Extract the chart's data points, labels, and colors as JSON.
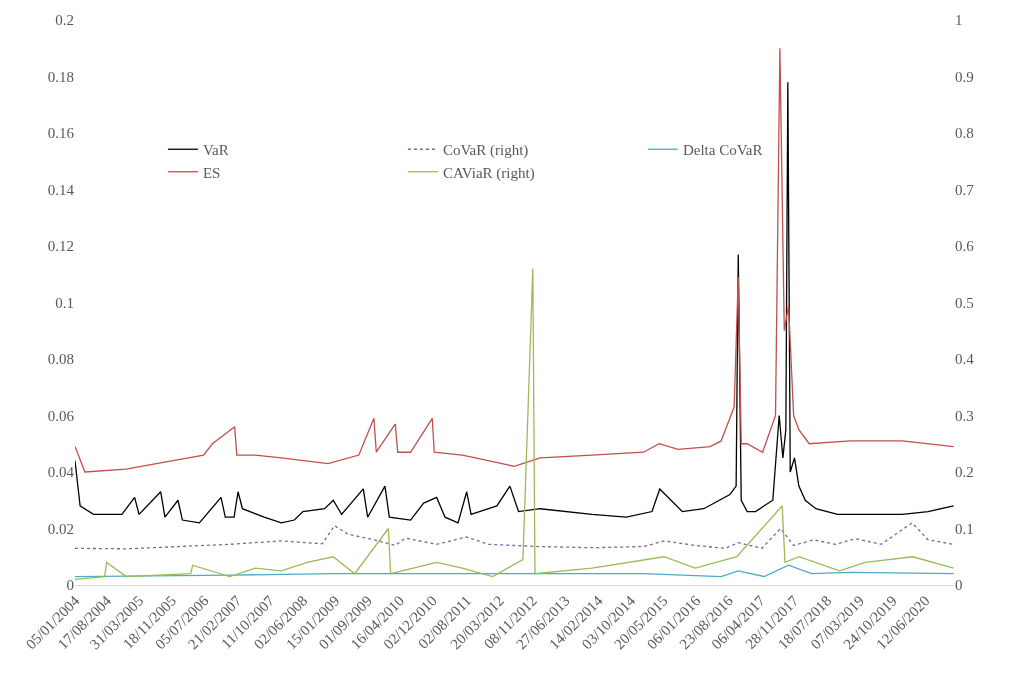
{
  "chart_data": {
    "type": "line",
    "xlim": [
      "2004-01-05",
      "2020-12-31"
    ],
    "xticks": [
      {
        "value": "2004-01-05",
        "label": "05/01/2004"
      },
      {
        "value": "2004-08-17",
        "label": "17/08/2004"
      },
      {
        "value": "2005-03-31",
        "label": "31/03/2005"
      },
      {
        "value": "2005-11-18",
        "label": "18/11/2005"
      },
      {
        "value": "2006-07-05",
        "label": "05/07/2006"
      },
      {
        "value": "2007-02-21",
        "label": "21/02/2007"
      },
      {
        "value": "2007-10-11",
        "label": "11/10/2007"
      },
      {
        "value": "2008-06-02",
        "label": "02/06/2008"
      },
      {
        "value": "2009-01-15",
        "label": "15/01/2009"
      },
      {
        "value": "2009-09-01",
        "label": "01/09/2009"
      },
      {
        "value": "2010-04-16",
        "label": "16/04/2010"
      },
      {
        "value": "2010-12-02",
        "label": "02/12/2010"
      },
      {
        "value": "2011-08-02",
        "label": "02/08/2011"
      },
      {
        "value": "2012-03-20",
        "label": "20/03/2012"
      },
      {
        "value": "2012-11-08",
        "label": "08/11/2012"
      },
      {
        "value": "2013-06-27",
        "label": "27/06/2013"
      },
      {
        "value": "2014-02-14",
        "label": "14/02/2014"
      },
      {
        "value": "2014-10-03",
        "label": "03/10/2014"
      },
      {
        "value": "2015-05-20",
        "label": "20/05/2015"
      },
      {
        "value": "2016-01-06",
        "label": "06/01/2016"
      },
      {
        "value": "2016-08-23",
        "label": "23/08/2016"
      },
      {
        "value": "2017-04-06",
        "label": "06/04/2017"
      },
      {
        "value": "2017-11-28",
        "label": "28/11/2017"
      },
      {
        "value": "2018-07-18",
        "label": "18/07/2018"
      },
      {
        "value": "2019-03-07",
        "label": "07/03/2019"
      },
      {
        "value": "2019-10-24",
        "label": "24/10/2019"
      },
      {
        "value": "2020-06-12",
        "label": "12/06/2020"
      }
    ],
    "ylim": [
      0,
      0.2
    ],
    "yticks": [
      0,
      0.02,
      0.04,
      0.06,
      0.08,
      0.1,
      0.12,
      0.14,
      0.16,
      0.18,
      0.2
    ],
    "y2lim": [
      0,
      1
    ],
    "y2ticks": [
      0,
      0.1,
      0.2,
      0.3,
      0.4,
      0.5,
      0.6,
      0.7,
      0.8,
      0.9,
      1
    ],
    "legend": "top left",
    "line_style": "solid",
    "marker": "none",
    "series": [
      {
        "name": "VaR",
        "color": "#000000",
        "x": [
          "2004-01-05",
          "2004-02-10",
          "2004-05-15",
          "2004-12-01",
          "2005-03-01",
          "2005-04-01",
          "2005-09-01",
          "2005-10-01",
          "2006-01-01",
          "2006-02-01",
          "2006-06-01",
          "2006-11-01",
          "2006-12-01",
          "2007-02-01",
          "2007-03-01",
          "2007-04-01",
          "2007-09-01",
          "2008-01-01",
          "2008-04-01",
          "2008-06-01",
          "2008-11-01",
          "2009-01-01",
          "2009-03-01",
          "2009-08-01",
          "2009-09-01",
          "2010-01-01",
          "2010-02-01",
          "2010-07-01",
          "2010-10-01",
          "2011-01-01",
          "2011-03-01",
          "2011-06-01",
          "2011-08-01",
          "2011-09-01",
          "2012-03-01",
          "2012-06-01",
          "2012-08-01",
          "2013-01-01",
          "2014-01-01",
          "2014-09-01",
          "2015-03-01",
          "2015-04-25",
          "2015-10-01",
          "2016-03-01",
          "2016-09-01",
          "2016-10-15",
          "2016-10-30",
          "2016-11-20",
          "2017-01-01",
          "2017-03-01",
          "2017-07-01",
          "2017-08-15",
          "2017-09-10",
          "2017-10-01",
          "2017-10-15",
          "2017-11-01",
          "2017-12-01",
          "2018-01-01",
          "2018-02-15",
          "2018-05-01",
          "2018-10-01",
          "2019-06-01",
          "2020-01-01",
          "2020-07-01",
          "2020-12-28"
        ],
        "values": [
          0.044,
          0.028,
          0.025,
          0.025,
          0.031,
          0.025,
          0.033,
          0.024,
          0.03,
          0.023,
          0.022,
          0.031,
          0.024,
          0.024,
          0.033,
          0.027,
          0.024,
          0.022,
          0.023,
          0.026,
          0.027,
          0.03,
          0.025,
          0.034,
          0.024,
          0.035,
          0.024,
          0.023,
          0.029,
          0.031,
          0.024,
          0.022,
          0.033,
          0.025,
          0.028,
          0.035,
          0.026,
          0.027,
          0.025,
          0.024,
          0.026,
          0.034,
          0.026,
          0.027,
          0.032,
          0.035,
          0.117,
          0.03,
          0.026,
          0.026,
          0.03,
          0.06,
          0.045,
          0.055,
          0.178,
          0.04,
          0.045,
          0.035,
          0.03,
          0.027,
          0.025,
          0.025,
          0.025,
          0.026,
          0.028
        ]
      },
      {
        "name": "CoVaR (right)",
        "color": "#8064a2",
        "axis": "y2",
        "line_style": "dotted",
        "x": [
          "2004-01-05",
          "2005-01-01",
          "2006-01-01",
          "2007-01-01",
          "2008-01-01",
          "2008-10-15",
          "2009-01-10",
          "2009-04-15",
          "2009-10-15",
          "2010-03-15",
          "2010-05-25",
          "2011-01-01",
          "2011-08-01",
          "2012-01-01",
          "2013-01-01",
          "2014-01-01",
          "2015-01-01",
          "2015-05-25",
          "2016-01-01",
          "2016-08-01",
          "2016-10-30",
          "2017-04-15",
          "2017-08-25",
          "2017-11-25",
          "2018-04-15",
          "2018-09-15",
          "2019-02-05",
          "2019-08-05",
          "2020-03-10",
          "2020-07-01",
          "2020-12-28"
        ],
        "values": [
          0.065,
          0.064,
          0.068,
          0.072,
          0.078,
          0.073,
          0.105,
          0.09,
          0.08,
          0.07,
          0.083,
          0.072,
          0.085,
          0.072,
          0.068,
          0.066,
          0.068,
          0.078,
          0.07,
          0.065,
          0.075,
          0.065,
          0.1,
          0.07,
          0.08,
          0.072,
          0.082,
          0.072,
          0.11,
          0.08,
          0.072
        ]
      },
      {
        "name": "Delta CoVaR",
        "color": "#4bacc6",
        "x": [
          "2004-01-05",
          "2007-01-01",
          "2009-01-01",
          "2012-01-01",
          "2015-01-01",
          "2016-07-01",
          "2016-10-30",
          "2017-05-01",
          "2017-10-20",
          "2018-04-01",
          "2019-01-01",
          "2020-12-28"
        ],
        "values": [
          0.003,
          0.0035,
          0.004,
          0.004,
          0.004,
          0.003,
          0.005,
          0.003,
          0.007,
          0.004,
          0.0045,
          0.004
        ]
      },
      {
        "name": "ES",
        "color": "#c0504d",
        "x": [
          "2004-01-05",
          "2004-03-15",
          "2005-01-01",
          "2005-08-01",
          "2006-07-01",
          "2006-09-01",
          "2007-02-05",
          "2007-02-20",
          "2007-07-01",
          "2008-01-01",
          "2008-11-25",
          "2009-07-01",
          "2009-10-15",
          "2009-11-01",
          "2010-03-15",
          "2010-04-01",
          "2010-07-01",
          "2010-12-01",
          "2010-12-15",
          "2011-07-01",
          "2012-01-01",
          "2012-07-01",
          "2013-01-01",
          "2014-01-01",
          "2015-01-01",
          "2015-04-20",
          "2015-09-01",
          "2016-04-15",
          "2016-07-01",
          "2016-10-01",
          "2016-10-30",
          "2016-11-20",
          "2017-01-01",
          "2017-04-20",
          "2017-07-20",
          "2017-08-20",
          "2017-09-20",
          "2017-10-20",
          "2017-11-25",
          "2018-01-01",
          "2018-03-15",
          "2019-01-01",
          "2020-01-01",
          "2020-12-28"
        ],
        "values": [
          0.049,
          0.04,
          0.041,
          0.043,
          0.046,
          0.05,
          0.056,
          0.046,
          0.046,
          0.045,
          0.043,
          0.046,
          0.059,
          0.047,
          0.057,
          0.047,
          0.047,
          0.059,
          0.047,
          0.046,
          0.044,
          0.042,
          0.045,
          0.046,
          0.047,
          0.05,
          0.048,
          0.049,
          0.051,
          0.063,
          0.109,
          0.05,
          0.05,
          0.047,
          0.06,
          0.19,
          0.09,
          0.099,
          0.06,
          0.055,
          0.05,
          0.051,
          0.051,
          0.049
        ]
      },
      {
        "name": "CAViaR (right)",
        "color": "#9bbb59",
        "axis": "y2",
        "x": [
          "2004-01-05",
          "2004-08-01",
          "2004-08-15",
          "2005-01-01",
          "2006-04-01",
          "2006-04-15",
          "2007-01-01",
          "2007-07-01",
          "2008-01-01",
          "2008-07-01",
          "2009-01-01",
          "2009-06-01",
          "2010-01-25",
          "2010-02-10",
          "2011-01-01",
          "2011-07-01",
          "2012-02-01",
          "2012-09-01",
          "2012-11-10",
          "2012-11-25",
          "2014-01-01",
          "2015-05-25",
          "2016-01-01",
          "2016-10-20",
          "2017-09-05",
          "2017-09-25",
          "2018-01-01",
          "2018-10-15",
          "2019-04-15",
          "2020-03-15",
          "2020-12-28"
        ],
        "values": [
          0.01,
          0.015,
          0.04,
          0.015,
          0.02,
          0.035,
          0.015,
          0.03,
          0.025,
          0.04,
          0.05,
          0.02,
          0.1,
          0.02,
          0.04,
          0.03,
          0.015,
          0.045,
          0.56,
          0.02,
          0.03,
          0.05,
          0.03,
          0.05,
          0.14,
          0.04,
          0.05,
          0.025,
          0.04,
          0.05,
          0.03
        ]
      }
    ]
  }
}
